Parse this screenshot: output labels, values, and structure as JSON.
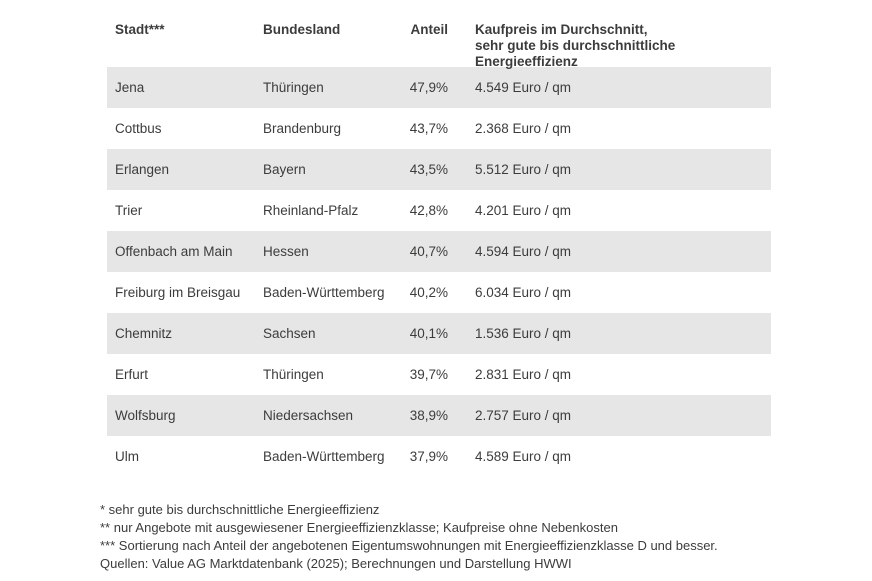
{
  "colors": {
    "background": "#ffffff",
    "row_stripe": "#e6e6e6",
    "text": "#3c3c3b"
  },
  "table": {
    "headers": {
      "stadt": "Stadt***",
      "bundesland": "Bundesland",
      "anteil": "Anteil",
      "kaufpreis_line1": "Kaufpreis im Durchschnitt,",
      "kaufpreis_line2": "sehr gute bis durchschnittliche Energieeffizienz"
    },
    "rows": [
      {
        "city": "Jena",
        "state": "Thüringen",
        "share": "47,9%",
        "price": "4.549 Euro / qm"
      },
      {
        "city": "Cottbus",
        "state": "Brandenburg",
        "share": "43,7%",
        "price": "2.368 Euro / qm"
      },
      {
        "city": "Erlangen",
        "state": "Bayern",
        "share": "43,5%",
        "price": "5.512 Euro / qm"
      },
      {
        "city": "Trier",
        "state": "Rheinland-Pfalz",
        "share": "42,8%",
        "price": "4.201 Euro / qm"
      },
      {
        "city": "Offenbach am Main",
        "state": "Hessen",
        "share": "40,7%",
        "price": "4.594 Euro / qm"
      },
      {
        "city": "Freiburg im Breisgau",
        "state": "Baden-Württemberg",
        "share": "40,2%",
        "price": "6.034 Euro / qm"
      },
      {
        "city": "Chemnitz",
        "state": "Sachsen",
        "share": "40,1%",
        "price": "1.536 Euro / qm"
      },
      {
        "city": "Erfurt",
        "state": "Thüringen",
        "share": "39,7%",
        "price": "2.831 Euro / qm"
      },
      {
        "city": "Wolfsburg",
        "state": "Niedersachsen",
        "share": "38,9%",
        "price": "2.757 Euro / qm"
      },
      {
        "city": "Ulm",
        "state": "Baden-Württemberg",
        "share": "37,9%",
        "price": "4.589 Euro / qm"
      }
    ]
  },
  "footnotes": [
    "* sehr gute bis durchschnittliche Energieeffizienz",
    "** nur Angebote mit ausgewiesener Energieeffizienzklasse; Kaufpreise ohne Nebenkosten",
    "*** Sortierung nach Anteil der angebotenen Eigentumswohnungen mit Energieeffizienzklasse D und besser.",
    "Quellen: Value AG Marktdatenbank (2025); Berechnungen und Darstellung HWWI"
  ],
  "chart_data": {
    "type": "table",
    "columns": [
      "Stadt***",
      "Bundesland",
      "Anteil",
      "Kaufpreis im Durchschnitt, sehr gute bis durchschnittliche Energieeffizienz"
    ],
    "rows": [
      [
        "Jena",
        "Thüringen",
        "47,9%",
        "4.549 Euro / qm"
      ],
      [
        "Cottbus",
        "Brandenburg",
        "43,7%",
        "2.368 Euro / qm"
      ],
      [
        "Erlangen",
        "Bayern",
        "43,5%",
        "5.512 Euro / qm"
      ],
      [
        "Trier",
        "Rheinland-Pfalz",
        "42,8%",
        "4.201 Euro / qm"
      ],
      [
        "Offenbach am Main",
        "Hessen",
        "40,7%",
        "4.594 Euro / qm"
      ],
      [
        "Freiburg im Breisgau",
        "Baden-Württemberg",
        "40,2%",
        "6.034 Euro / qm"
      ],
      [
        "Chemnitz",
        "Sachsen",
        "40,1%",
        "1.536 Euro / qm"
      ],
      [
        "Erfurt",
        "Thüringen",
        "39,7%",
        "2.831 Euro / qm"
      ],
      [
        "Wolfsburg",
        "Niedersachsen",
        "38,9%",
        "2.757 Euro / qm"
      ],
      [
        "Ulm",
        "Baden-Württemberg",
        "37,9%",
        "4.589 Euro / qm"
      ]
    ],
    "share_values_percent": [
      47.9,
      43.7,
      43.5,
      42.8,
      40.7,
      40.2,
      40.1,
      39.7,
      38.9,
      37.9
    ],
    "price_values_eur_per_sqm": [
      4549,
      2368,
      5512,
      4201,
      4594,
      6034,
      1536,
      2831,
      2757,
      4589
    ],
    "annotations": [
      "* sehr gute bis durchschnittliche Energieeffizienz",
      "** nur Angebote mit ausgewiesener Energieeffizienzklasse; Kaufpreise ohne Nebenkosten",
      "*** Sortierung nach Anteil der angebotenen Eigentumswohnungen mit Energieeffizienzklasse D und besser.",
      "Quellen: Value AG Marktdatenbank (2025); Berechnungen und Darstellung HWWI"
    ]
  }
}
